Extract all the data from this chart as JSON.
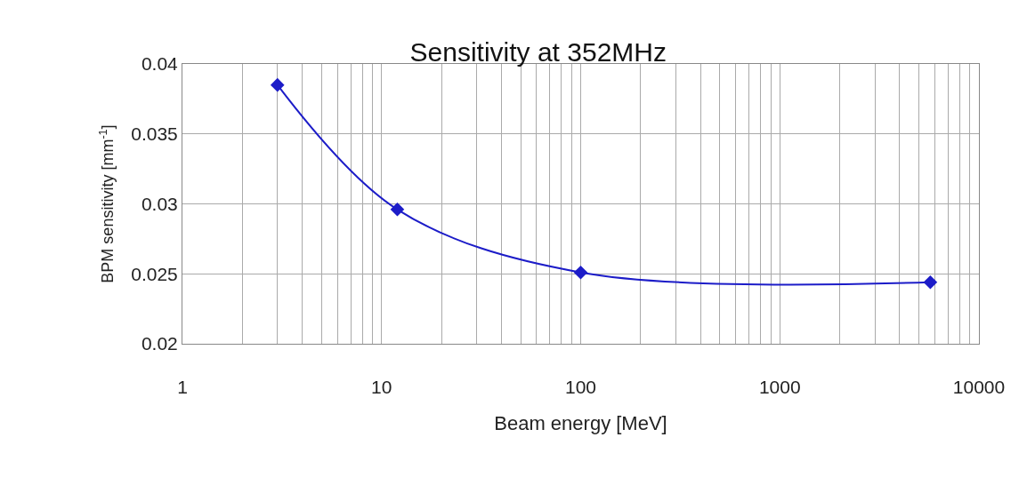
{
  "chart_data": {
    "type": "line",
    "title": "Sensitivity at 352MHz",
    "xlabel": "Beam energy [MeV]",
    "ylabel": "BPM sensitivity [mm$^{-1}$]",
    "x": [
      3,
      12,
      100,
      5700
    ],
    "series": [
      {
        "color": "#1c1cc8",
        "values": [
          0.0385,
          0.0296,
          0.0251,
          0.0244
        ]
      }
    ],
    "log": "x",
    "xlim": [
      1,
      10000
    ],
    "xticks": [
      1,
      {
        "value": 2,
        "label": null
      },
      {
        "value": 3,
        "label": null
      },
      {
        "value": 4,
        "label": null
      },
      {
        "value": 5,
        "label": null
      },
      {
        "value": 6,
        "label": null
      },
      {
        "value": 7,
        "label": null
      },
      {
        "value": 8,
        "label": null
      },
      {
        "value": 9,
        "label": null
      },
      10,
      {
        "value": 20,
        "label": null
      },
      {
        "value": 30,
        "label": null
      },
      {
        "value": 40,
        "label": null
      },
      {
        "value": 50,
        "label": null
      },
      {
        "value": 60,
        "label": null
      },
      {
        "value": 70,
        "label": null
      },
      {
        "value": 80,
        "label": null
      },
      {
        "value": 90,
        "label": null
      },
      100,
      {
        "value": 200,
        "label": null
      },
      {
        "value": 300,
        "label": null
      },
      {
        "value": 400,
        "label": null
      },
      {
        "value": 500,
        "label": null
      },
      {
        "value": 600,
        "label": null
      },
      {
        "value": 700,
        "label": null
      },
      {
        "value": 800,
        "label": null
      },
      {
        "value": 900,
        "label": null
      },
      1000,
      {
        "value": 2000,
        "label": null
      },
      {
        "value": 3000,
        "label": null
      },
      {
        "value": 4000,
        "label": null
      },
      {
        "value": 5000,
        "label": null
      },
      {
        "value": 6000,
        "label": null
      },
      {
        "value": 7000,
        "label": null
      },
      {
        "value": 8000,
        "label": null
      },
      {
        "value": 9000,
        "label": null
      },
      10000
    ],
    "ylim": [
      0.02,
      0.04
    ],
    "yticks": [
      0.02,
      0.025,
      0.03,
      0.035,
      0.04
    ],
    "grid": true,
    "legend": false,
    "marker": "diamond",
    "line_style": "solid"
  }
}
